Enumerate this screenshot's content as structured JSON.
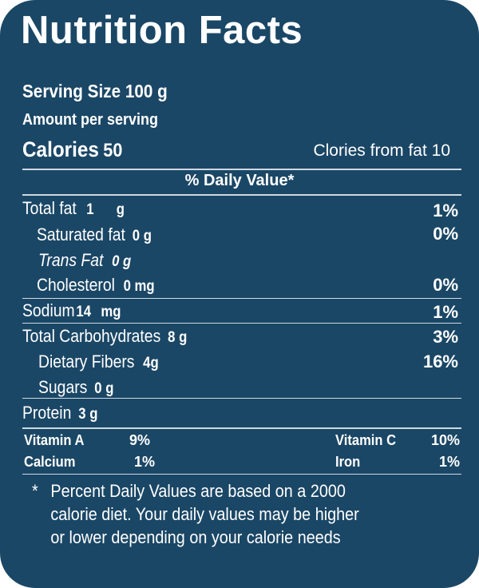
{
  "label": {
    "title": "Nutrition Facts",
    "serving_size": "Serving Size 100 g",
    "amount_per_serving": "Amount per serving",
    "calories_label": "Calories",
    "calories_value": "50",
    "calories_from_fat": "Clories from fat 10",
    "daily_value_header": "% Daily Value*"
  },
  "nutrients": {
    "total_fat": {
      "label": "Total fat",
      "value": "1",
      "unit": "g",
      "dv": "1%"
    },
    "saturated_fat": {
      "label": "Saturated fat",
      "value": "0 g",
      "dv": "0%"
    },
    "trans_fat": {
      "label": "Trans Fat",
      "value": "0 g"
    },
    "cholesterol": {
      "label": "Cholesterol",
      "value": "0 mg",
      "dv": "0%"
    },
    "sodium": {
      "label": "Sodium",
      "value": "14",
      "unit": "mg",
      "dv": "1%"
    },
    "total_carbohydrates": {
      "label": "Total Carbohydrates",
      "value": "8 g",
      "dv": "3%"
    },
    "dietary_fibers": {
      "label": "Dietary Fibers",
      "value": "4g",
      "dv": "16%"
    },
    "sugars": {
      "label": "Sugars",
      "value": "0 g"
    },
    "protein": {
      "label": "Protein",
      "value": "3 g"
    }
  },
  "vitamins": {
    "vitamin_a": {
      "label": "Vitamin A",
      "dv": "9%"
    },
    "vitamin_c": {
      "label": "Vitamin C",
      "dv": "10%"
    },
    "calcium": {
      "label": "Calcium",
      "dv": "1%"
    },
    "iron": {
      "label": "Iron",
      "dv": "1%"
    }
  },
  "footnote": {
    "star": "*",
    "line1": "Percent  Daily  Values  are  based  on  a  2000",
    "line2": "calorie  diet.  Your  daily  values   may  be   higher",
    "line3": "or   lower  depending  on  your  calorie  needs"
  },
  "colors": {
    "panel": "#1b4766",
    "text": "#ffffff",
    "rule": "#cfd9e2"
  }
}
